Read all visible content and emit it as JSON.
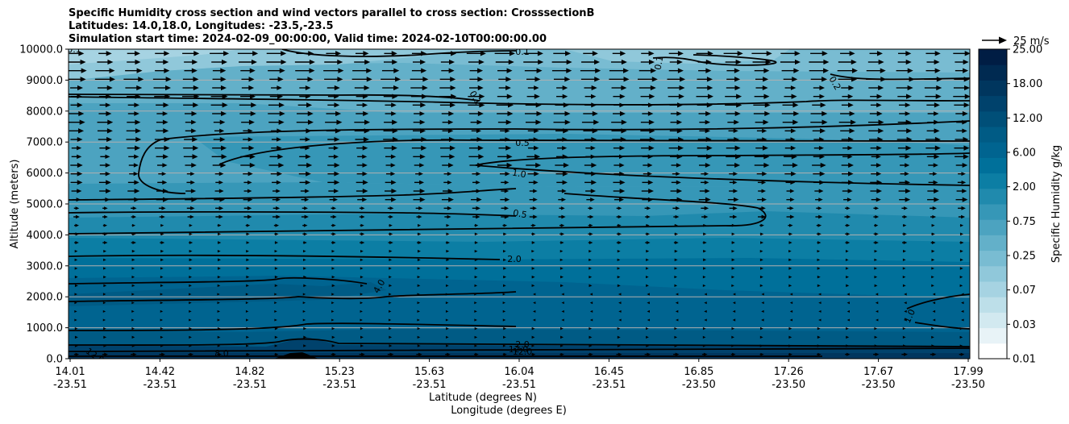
{
  "chart_data": {
    "type": "contourf-cross-section",
    "title_lines": [
      "Specific Humidity cross section and wind vectors parallel to cross section: CrosssectionB",
      "Latitudes: 14.0,18.0, Longitudes: -23.5,-23.5",
      "Simulation start time: 2024-02-09_00:00:00, Valid time: 2024-02-10T00:00:00.00"
    ],
    "ylabel": "Altitude (meters)",
    "xlabel_lat": "Latitude (degrees N)",
    "xlabel_lon": "Longitude (degrees E)",
    "ylim": [
      0,
      10000
    ],
    "y_ticks": [
      "0.0",
      "1000.0",
      "2000.0",
      "3000.0",
      "4000.0",
      "5000.0",
      "6000.0",
      "7000.0",
      "8000.0",
      "9000.0",
      "10000.0"
    ],
    "x_ticks": [
      {
        "lat": "14.01",
        "lon": "-23.51"
      },
      {
        "lat": "14.42",
        "lon": "-23.51"
      },
      {
        "lat": "14.82",
        "lon": "-23.51"
      },
      {
        "lat": "15.23",
        "lon": "-23.51"
      },
      {
        "lat": "15.63",
        "lon": "-23.51"
      },
      {
        "lat": "16.04",
        "lon": "-23.51"
      },
      {
        "lat": "16.45",
        "lon": "-23.51"
      },
      {
        "lat": "16.85",
        "lon": "-23.50"
      },
      {
        "lat": "17.26",
        "lon": "-23.50"
      },
      {
        "lat": "17.67",
        "lon": "-23.50"
      },
      {
        "lat": "17.99",
        "lon": "-23.50"
      }
    ],
    "colorbar": {
      "label": "Specific Humidity g/kg",
      "tick_labels": [
        "0.01",
        "0.03",
        "0.07",
        "0.25",
        "0.75",
        "2.00",
        "6.00",
        "12.00",
        "18.00",
        "25.00"
      ],
      "colors": [
        "#ffffff",
        "#e8f3f7",
        "#d2e9f0",
        "#bddfe9",
        "#a6d3e2",
        "#90c8da",
        "#79bcd2",
        "#63b0c9",
        "#4ca3c0",
        "#3697b7",
        "#208aad",
        "#0c7ea4",
        "#00709a",
        "#006490",
        "#005b85",
        "#004f78",
        "#00426c",
        "#00365e",
        "#002a51",
        "#001d44"
      ]
    },
    "quiver_key": "25 m/s",
    "contour_labels": [
      "0.1",
      "0.1",
      "0.1",
      "0.2",
      "0.1",
      "0.5",
      "1.0",
      "0.5",
      "2.0",
      "4.0",
      "1.0",
      "8.0",
      "2.0",
      "12.0",
      "12.0",
      "12.0"
    ]
  }
}
